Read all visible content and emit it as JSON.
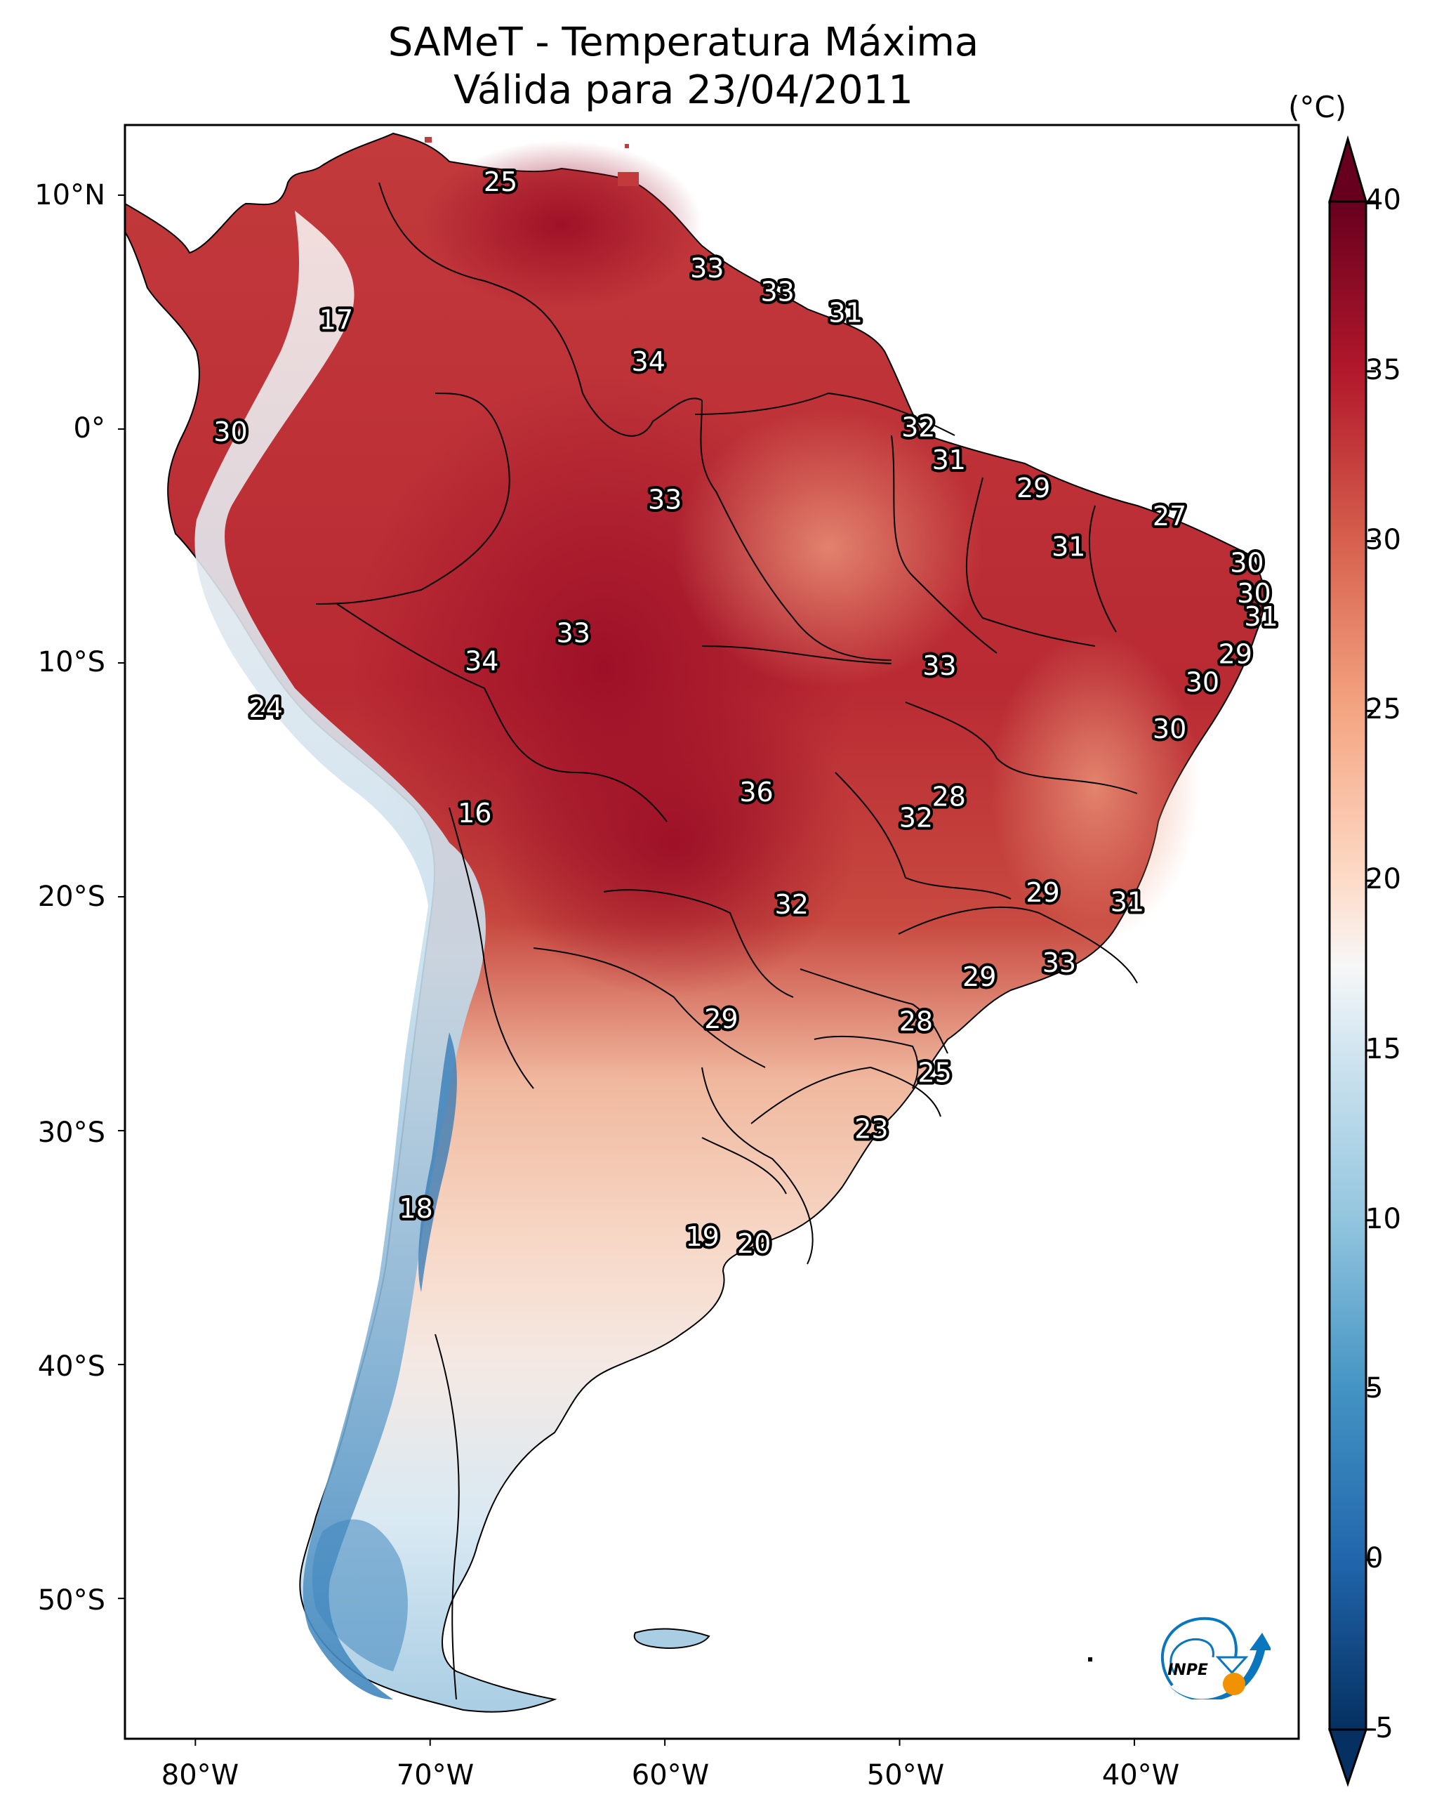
{
  "title": {
    "line1": "SAMeT - Temperatura Máxima",
    "line2": "Válida para 23/04/2011"
  },
  "chart_data": {
    "type": "heatmap",
    "title": "SAMeT - Temperatura Máxima / Válida para 23/04/2011",
    "variable": "Maximum temperature",
    "units": "(°C)",
    "region": "South America",
    "xlim_lon": [
      -83,
      -33
    ],
    "ylim_lat": [
      -56,
      13
    ],
    "x_ticks": [
      "80°W",
      "70°W",
      "60°W",
      "50°W",
      "40°W"
    ],
    "y_ticks": [
      "10°N",
      "0°",
      "10°S",
      "20°S",
      "30°S",
      "40°S",
      "50°S"
    ],
    "grid": false,
    "colormap": "RdBu_r",
    "colorbar": {
      "range": [
        -5,
        40
      ],
      "extend": "both",
      "ticks": [
        "40",
        "35",
        "30",
        "25",
        "20",
        "15",
        "10",
        "5",
        "0",
        "-5"
      ],
      "placement": "right",
      "unit_label": "(°C)"
    },
    "station_values": [
      {
        "label": "25",
        "lon": -67,
        "lat": 10.5
      },
      {
        "label": "17",
        "lon": -74,
        "lat": 4.6
      },
      {
        "label": "33",
        "lon": -58.2,
        "lat": 6.8
      },
      {
        "label": "33",
        "lon": -55.2,
        "lat": 5.8
      },
      {
        "label": "31",
        "lon": -52.3,
        "lat": 4.9
      },
      {
        "label": "34",
        "lon": -60.7,
        "lat": 2.8
      },
      {
        "label": "30",
        "lon": -78.5,
        "lat": -0.2
      },
      {
        "label": "32",
        "lon": -49.2,
        "lat": 0.0
      },
      {
        "label": "31",
        "lon": -47.9,
        "lat": -1.4
      },
      {
        "label": "33",
        "lon": -60.0,
        "lat": -3.1
      },
      {
        "label": "29",
        "lon": -44.3,
        "lat": -2.6
      },
      {
        "label": "27",
        "lon": -38.5,
        "lat": -3.8
      },
      {
        "label": "31",
        "lon": -42.8,
        "lat": -5.1
      },
      {
        "label": "30",
        "lon": -35.2,
        "lat": -5.8
      },
      {
        "label": "30",
        "lon": -34.9,
        "lat": -7.1
      },
      {
        "label": "31",
        "lon": -34.6,
        "lat": -8.1
      },
      {
        "label": "29",
        "lon": -35.7,
        "lat": -9.7
      },
      {
        "label": "30",
        "lon": -37.1,
        "lat": -10.9
      },
      {
        "label": "30",
        "lon": -38.5,
        "lat": -12.9
      },
      {
        "label": "33",
        "lon": -63.9,
        "lat": -8.8
      },
      {
        "label": "34",
        "lon": -67.8,
        "lat": -10.0
      },
      {
        "label": "33",
        "lon": -48.3,
        "lat": -10.2
      },
      {
        "label": "24",
        "lon": -77.0,
        "lat": -12.0
      },
      {
        "label": "36",
        "lon": -56.1,
        "lat": -15.6
      },
      {
        "label": "28",
        "lon": -47.9,
        "lat": -15.8
      },
      {
        "label": "32",
        "lon": -49.3,
        "lat": -16.7
      },
      {
        "label": "16",
        "lon": -68.1,
        "lat": -16.5
      },
      {
        "label": "29",
        "lon": -43.9,
        "lat": -19.9
      },
      {
        "label": "31",
        "lon": -40.3,
        "lat": -20.3
      },
      {
        "label": "32",
        "lon": -54.6,
        "lat": -20.4
      },
      {
        "label": "33",
        "lon": -43.2,
        "lat": -22.9
      },
      {
        "label": "29",
        "lon": -46.6,
        "lat": -23.5
      },
      {
        "label": "29",
        "lon": -57.6,
        "lat": -25.3
      },
      {
        "label": "28",
        "lon": -49.3,
        "lat": -25.4
      },
      {
        "label": "25",
        "lon": -48.5,
        "lat": -27.6
      },
      {
        "label": "23",
        "lon": -51.2,
        "lat": -30.0
      },
      {
        "label": "18",
        "lon": -70.6,
        "lat": -33.4
      },
      {
        "label": "19",
        "lon": -58.4,
        "lat": -34.6
      },
      {
        "label": "20",
        "lon": -56.2,
        "lat": -34.9
      }
    ]
  },
  "logo": {
    "text": "INPE"
  },
  "colors": {
    "hot": "#67001f",
    "warm": "#b2182b",
    "mild": "#f4a582",
    "neutral": "#f7f7f7",
    "cool": "#92c5de",
    "cold": "#2166ac",
    "coldest": "#053061",
    "inpe_blue": "#0a76bd",
    "inpe_orange": "#f39200"
  }
}
